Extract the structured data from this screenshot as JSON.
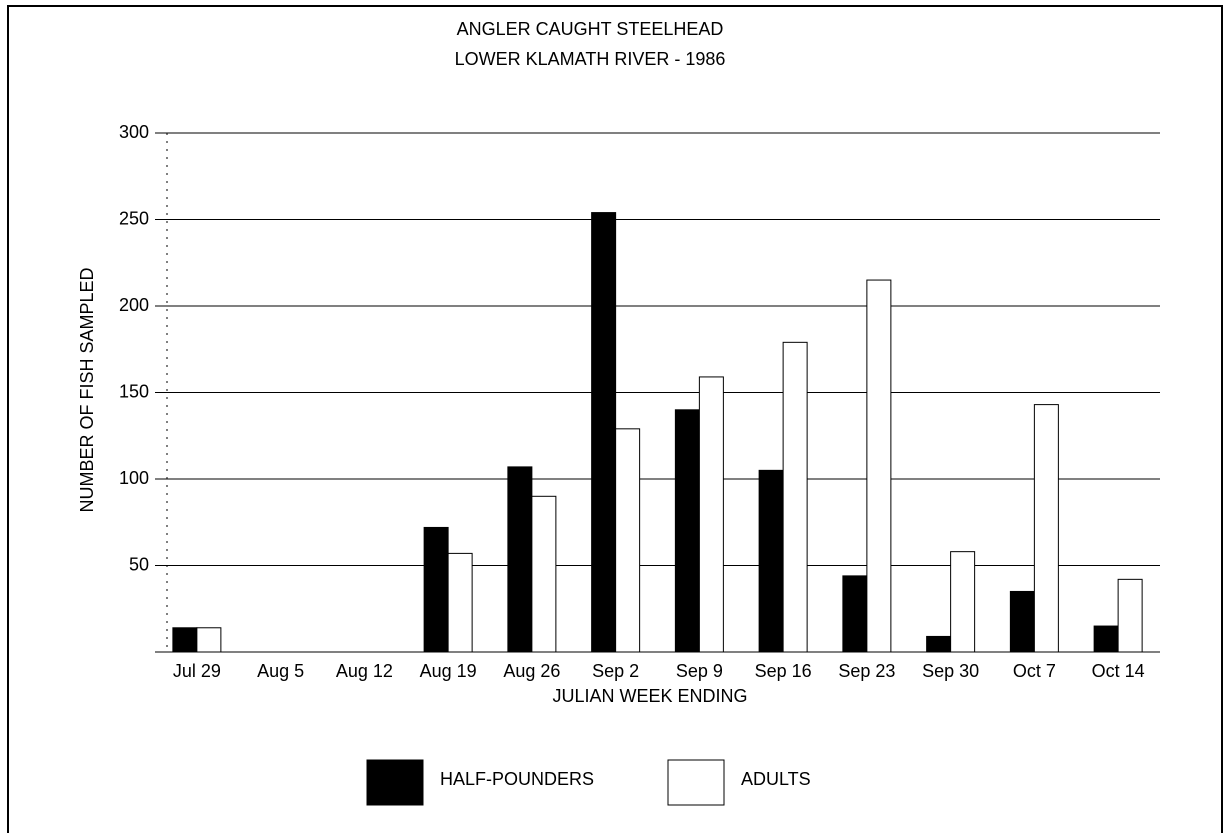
{
  "chart_data": {
    "type": "bar",
    "title": [
      "ANGLER CAUGHT STEELHEAD",
      "LOWER KLAMATH RIVER -  1986"
    ],
    "x_label": "JULIAN WEEK ENDING",
    "y_label": "NUMBER OF FISH SAMPLED",
    "categories": [
      "Jul 29",
      "Aug 5",
      "Aug 12",
      "Aug 19",
      "Aug 26",
      "Sep 2",
      "Sep 9",
      "Sep 16",
      "Sep 23",
      "Sep 30",
      "Oct 7",
      "Oct 14"
    ],
    "series": [
      {
        "name": "HALF-POUNDERS",
        "color": "#000000",
        "values": [
          14,
          0,
          0,
          72,
          107,
          254,
          140,
          105,
          44,
          9,
          35,
          15
        ]
      },
      {
        "name": "ADULTS",
        "color": "#ffffff",
        "values": [
          14,
          0,
          0,
          57,
          90,
          129,
          159,
          179,
          215,
          58,
          143,
          42
        ]
      }
    ],
    "ylim": [
      0,
      300
    ],
    "yticks": [
      50,
      100,
      150,
      200,
      250,
      300
    ],
    "grid": true,
    "legend": "bottom"
  }
}
